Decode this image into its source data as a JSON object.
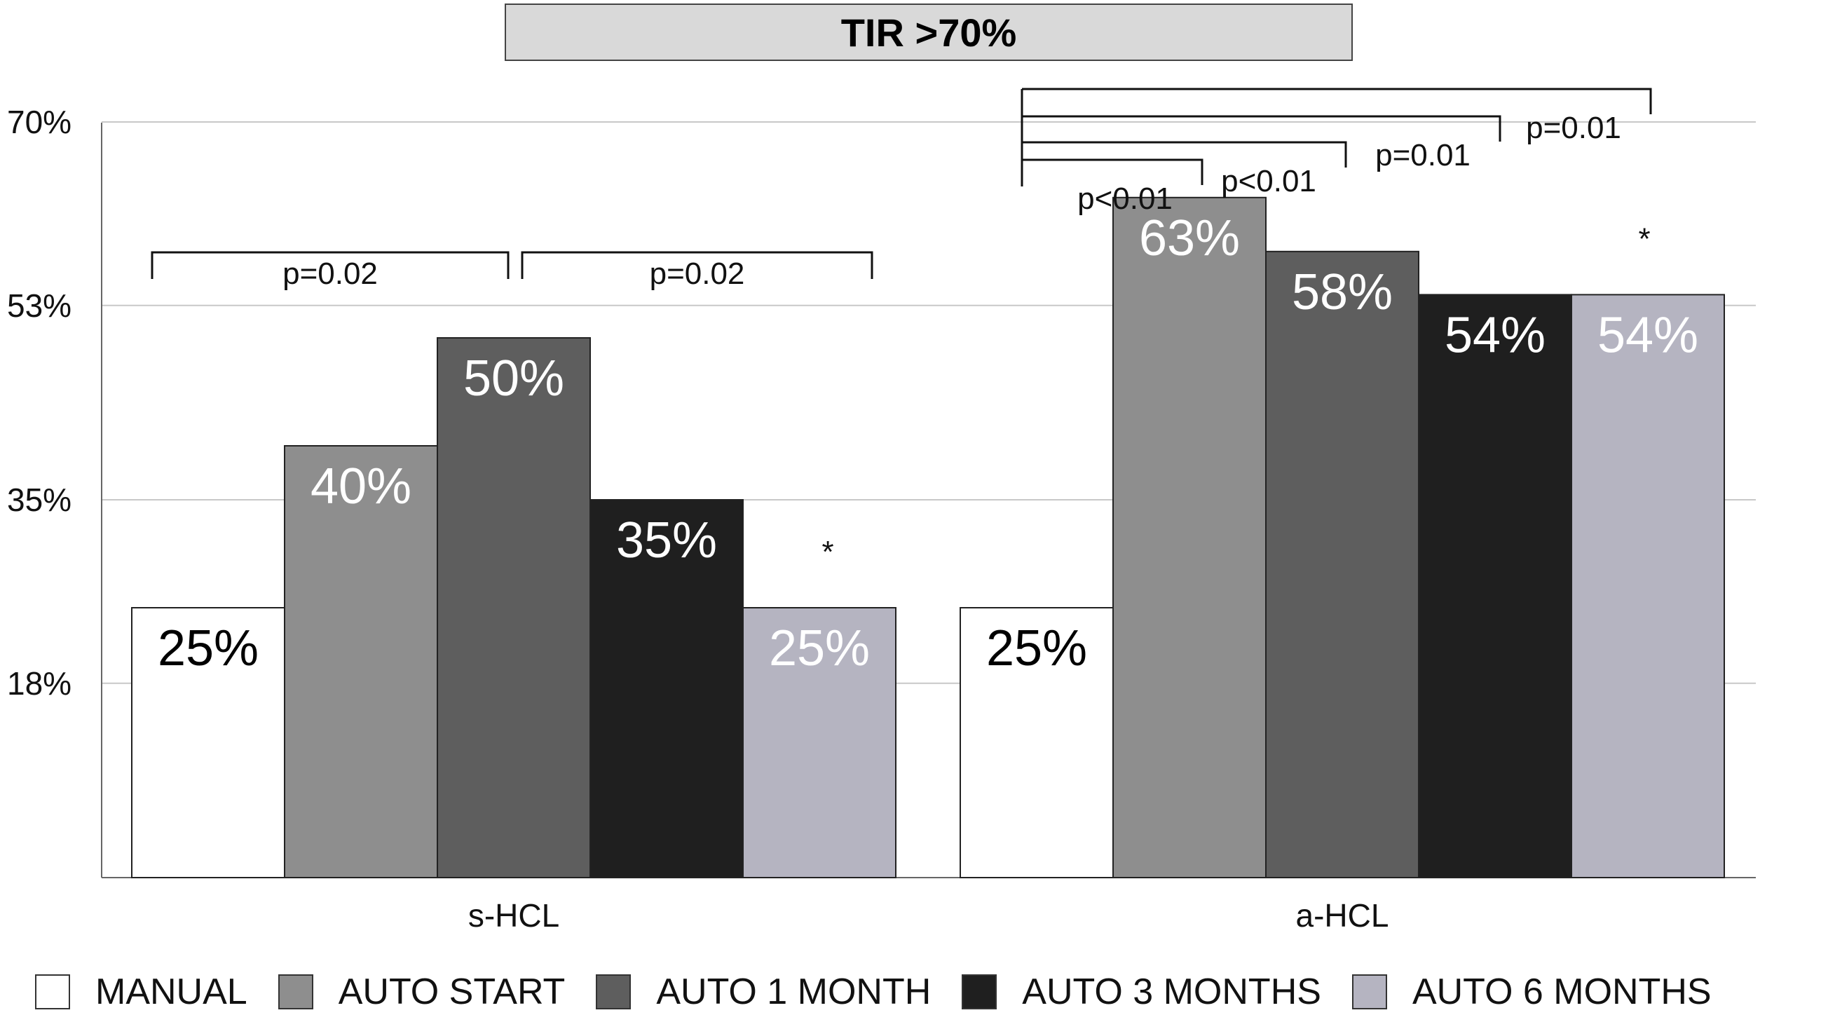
{
  "chart_data": {
    "type": "bar",
    "title": "TIR >70%",
    "categories": [
      "s-HCL",
      "a-HCL"
    ],
    "series": [
      {
        "name": "MANUAL",
        "values": [
          25,
          25
        ],
        "color": "#ffffff",
        "label_color": "#000000"
      },
      {
        "name": "AUTO START",
        "values": [
          40,
          63
        ],
        "color": "#8e8e8e",
        "label_color": "#ffffff"
      },
      {
        "name": "AUTO 1 MONTH",
        "values": [
          50,
          58
        ],
        "color": "#5e5e5e",
        "label_color": "#ffffff"
      },
      {
        "name": "AUTO 3 MONTHS",
        "values": [
          35,
          54
        ],
        "color": "#1f1f1f",
        "label_color": "#ffffff"
      },
      {
        "name": "AUTO 6 MONTHS",
        "values": [
          25,
          54
        ],
        "color": "#b5b4c1",
        "label_color": "#ffffff"
      }
    ],
    "data_labels": [
      [
        "25%",
        "25%"
      ],
      [
        "40%",
        "63%"
      ],
      [
        "50%",
        "58%"
      ],
      [
        "35%",
        "54%"
      ],
      [
        "25%",
        "54%"
      ]
    ],
    "y_ticks": [
      18,
      35,
      53,
      70
    ],
    "y_tick_labels": [
      "18%",
      "35%",
      "53%",
      "70%"
    ],
    "ylim": [
      0,
      70
    ],
    "grid": true,
    "legend_position": "bottom",
    "annotations": [
      {
        "category": "s-HCL",
        "from_series": 0,
        "to_series": 2,
        "text": "p=0.02"
      },
      {
        "category": "s-HCL",
        "from_series": 2,
        "to_series": 4,
        "text": "p=0.02"
      },
      {
        "category": "a-HCL",
        "from_series": 0,
        "to_series": 1,
        "text": "p<0.01"
      },
      {
        "category": "a-HCL",
        "from_series": 0,
        "to_series": 2,
        "text": "p<0.01"
      },
      {
        "category": "a-HCL",
        "from_series": 0,
        "to_series": 3,
        "text": "p=0.01"
      },
      {
        "category": "a-HCL",
        "from_series": 0,
        "to_series": 4,
        "text": "p=0.01"
      }
    ],
    "asterisks": [
      {
        "category": "s-HCL",
        "series": 4,
        "text": "*"
      },
      {
        "category": "a-HCL",
        "series": 4,
        "text": "*"
      }
    ]
  }
}
